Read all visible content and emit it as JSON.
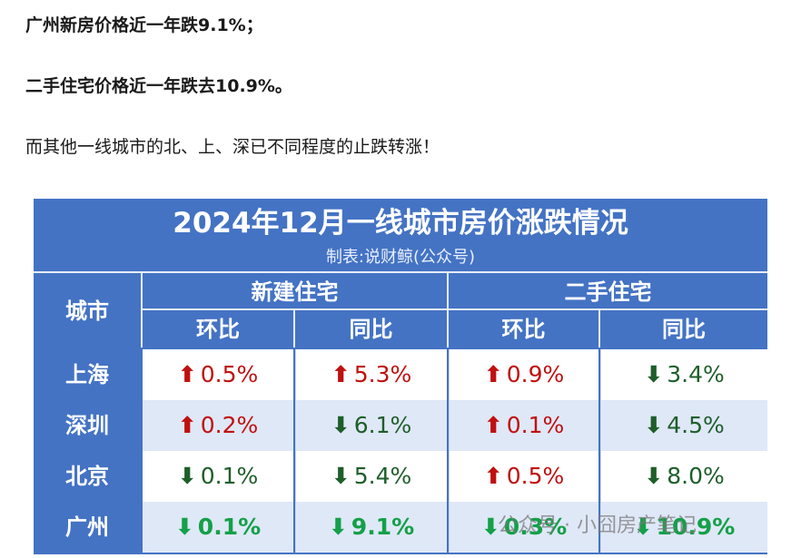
{
  "paragraphs": {
    "p1": "广州新房价格近一年跌9.1%；",
    "p2": "二手住宅价格近一年跌去10.9%。",
    "p3": "而其他一线城市的北、上、深已不同程度的止跌转涨！"
  },
  "table": {
    "title": "2024年12月一线城市房价涨跌情况",
    "subtitle": "制表:说财鲸(公众号)",
    "header": {
      "city": "城市",
      "group_new": "新建住宅",
      "group_second": "二手住宅",
      "mom": "环比",
      "yoy": "同比"
    },
    "rows": [
      {
        "city": "上海",
        "cells": [
          {
            "dir": "up",
            "value": "0.5%"
          },
          {
            "dir": "up",
            "value": "5.3%"
          },
          {
            "dir": "up",
            "value": "0.9%"
          },
          {
            "dir": "down",
            "value": "3.4%"
          }
        ]
      },
      {
        "city": "深圳",
        "cells": [
          {
            "dir": "up",
            "value": "0.2%"
          },
          {
            "dir": "down",
            "value": "6.1%"
          },
          {
            "dir": "up",
            "value": "0.1%"
          },
          {
            "dir": "down",
            "value": "4.5%"
          }
        ]
      },
      {
        "city": "北京",
        "cells": [
          {
            "dir": "down",
            "value": "0.1%"
          },
          {
            "dir": "down",
            "value": "5.4%"
          },
          {
            "dir": "up",
            "value": "0.5%"
          },
          {
            "dir": "down",
            "value": "8.0%"
          }
        ]
      },
      {
        "city": "广州",
        "cells": [
          {
            "dir": "down",
            "value": "0.1%"
          },
          {
            "dir": "down",
            "value": "9.1%"
          },
          {
            "dir": "down",
            "value": "0.3%"
          },
          {
            "dir": "down",
            "value": "10.9%"
          }
        ]
      }
    ],
    "arrows": {
      "up": "⬆",
      "down": "⬇"
    }
  },
  "watermark": "公众号 · 小囧房产笔记",
  "colors": {
    "header_bg": "#4473c4",
    "up": "#c01010",
    "down": "#1e5e2a",
    "down_highlight": "#14a049",
    "alt_row": "#dfe8f7"
  }
}
